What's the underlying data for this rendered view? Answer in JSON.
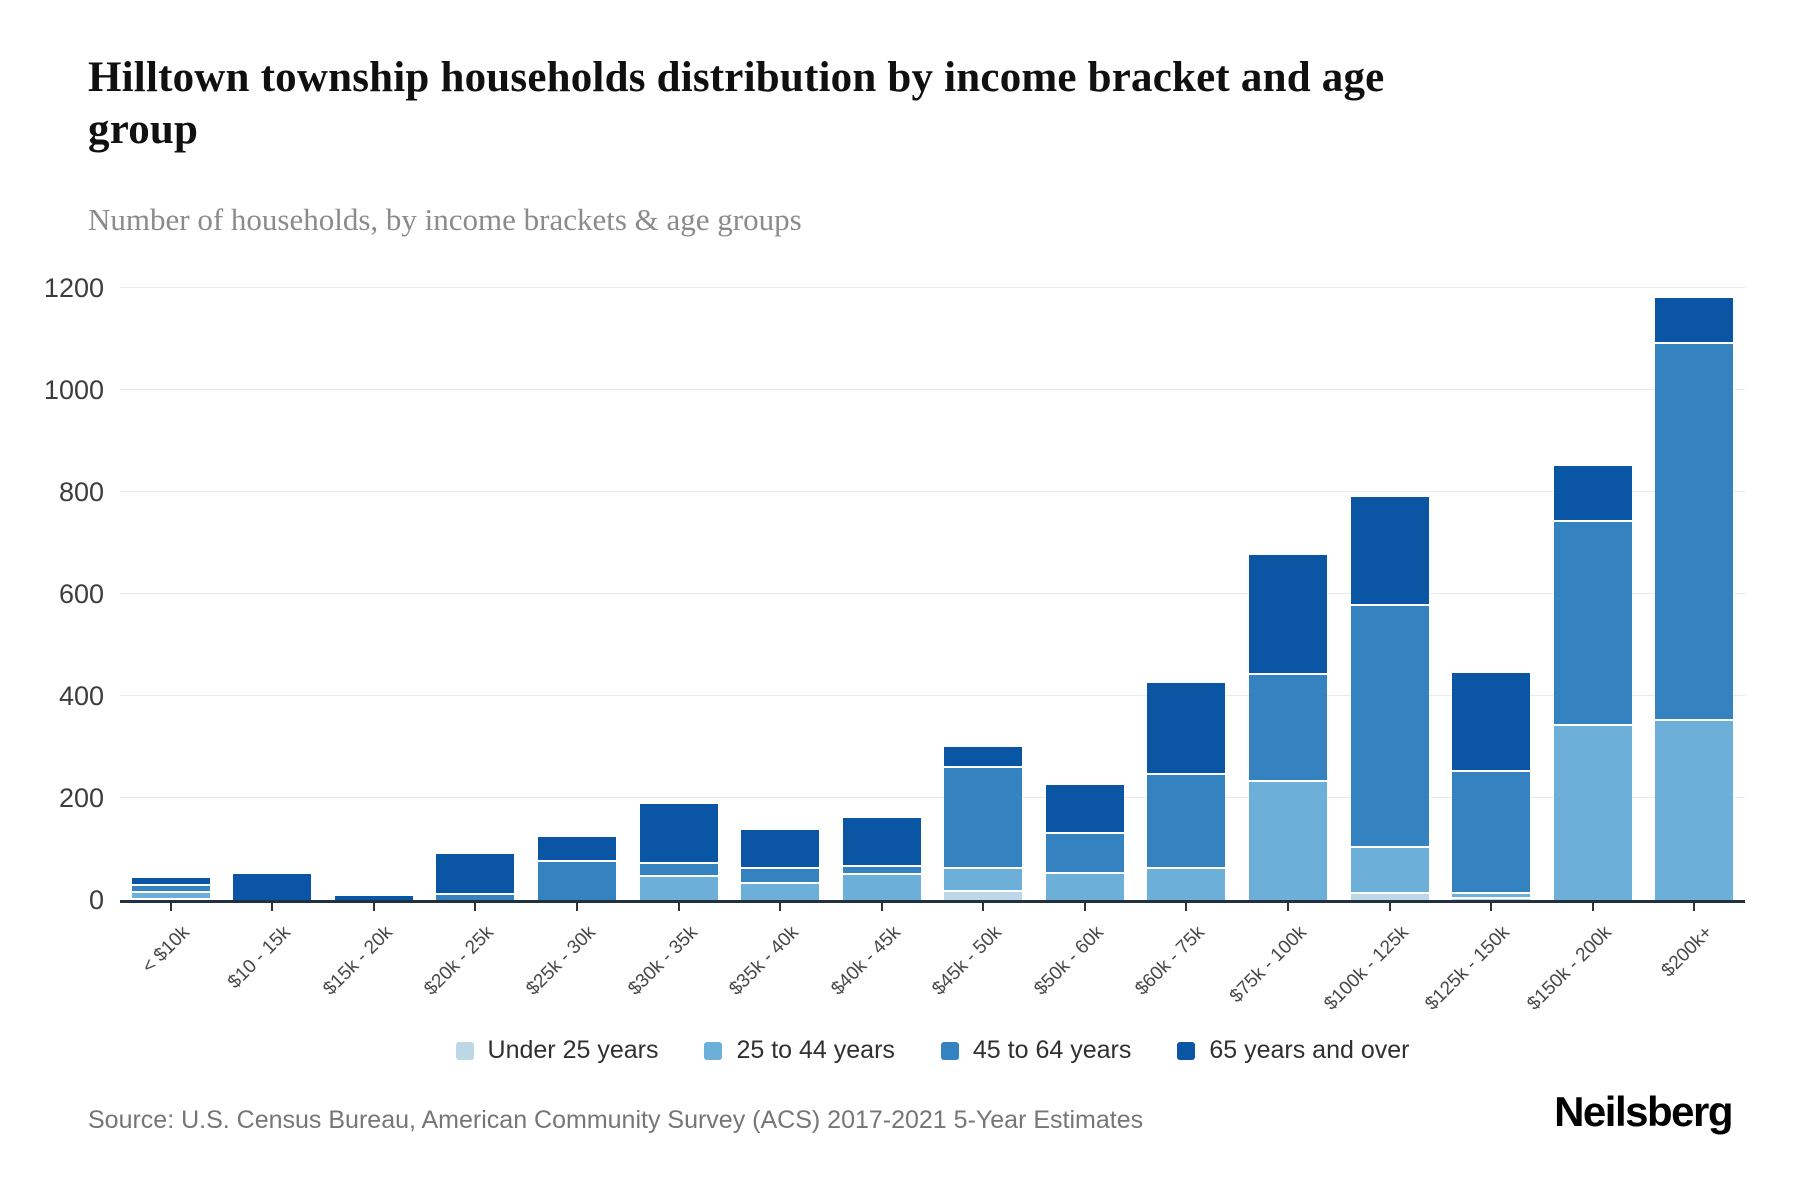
{
  "header": {
    "title": "Hilltown township households distribution by income bracket and age group",
    "subtitle": "Number of households, by income brackets & age groups"
  },
  "footer": {
    "source": "Source: U.S. Census Bureau, American Community Survey (ACS) 2017-2021 5-Year Estimates",
    "brand": "Neilsberg"
  },
  "colors": {
    "axis": "#22313f",
    "gridline": "#ebebeb",
    "background": "#ffffff"
  },
  "chart_data": {
    "type": "bar",
    "stacked": true,
    "title": "Hilltown township households distribution by income bracket and age group",
    "subtitle": "Number of households, by income brackets & age groups",
    "xlabel": "",
    "ylabel": "",
    "ylim": [
      0,
      1200
    ],
    "ytick_step": 200,
    "grid": true,
    "legend_position": "bottom",
    "categories": [
      "< $10k",
      "$10 - 15k",
      "$15k - 20k",
      "$20k - 25k",
      "$25k - 30k",
      "$30k - 35k",
      "$35k - 40k",
      "$40k - 45k",
      "$45k - 50k",
      "$50k - 60k",
      "$60k - 75k",
      "$75k - 100k",
      "$100k - 125k",
      "$125k - 150k",
      "$150k - 200k",
      "$200k+"
    ],
    "series": [
      {
        "name": "Under 25 years",
        "color": "#bdd7e7",
        "values": [
          4,
          0,
          0,
          0,
          0,
          0,
          0,
          0,
          20,
          0,
          0,
          0,
          15,
          5,
          0,
          0
        ]
      },
      {
        "name": "25 to 44 years",
        "color": "#6cafd8",
        "values": [
          14,
          0,
          0,
          0,
          0,
          50,
          36,
          52,
          45,
          55,
          65,
          235,
          90,
          10,
          345,
          355
        ]
      },
      {
        "name": "45 to 64 years",
        "color": "#3483c0",
        "values": [
          13,
          0,
          0,
          14,
          78,
          25,
          28,
          16,
          198,
          78,
          185,
          210,
          475,
          240,
          400,
          740
        ]
      },
      {
        "name": "65 years and over",
        "color": "#0b55a5",
        "values": [
          17,
          55,
          12,
          81,
          50,
          117,
          77,
          97,
          42,
          97,
          180,
          235,
          215,
          195,
          110,
          90
        ]
      }
    ]
  }
}
